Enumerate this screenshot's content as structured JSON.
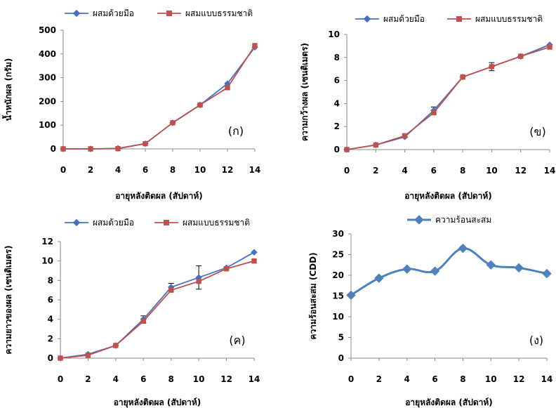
{
  "chart_data": [
    {
      "type": "line",
      "panel_label": "(ก)",
      "xlabel": "อายุหลังติดผล (สัปดาห์)",
      "ylabel": "น้ำหนักผล (กรัม)",
      "x": [
        0,
        2,
        4,
        6,
        8,
        10,
        12,
        14
      ],
      "xlim": [
        0,
        14
      ],
      "ylim": [
        0,
        500
      ],
      "yticks": [
        0,
        100,
        200,
        300,
        400,
        500
      ],
      "legend_position": "top",
      "series": [
        {
          "name": "ผสมด้วยมือ",
          "color": "#4472c4",
          "marker": "diamond",
          "values": [
            0,
            0,
            2,
            22,
            110,
            185,
            275,
            428
          ]
        },
        {
          "name": "ผสมแบบธรรมชาติ",
          "color": "#c0504d",
          "marker": "square",
          "values": [
            0,
            0,
            1,
            22,
            110,
            185,
            258,
            435
          ]
        }
      ]
    },
    {
      "type": "line",
      "panel_label": "(ข)",
      "xlabel": "อายุหลังติดผล (สัปดาห์)",
      "ylabel": "ความกว้างผล (เซนติเมตร)",
      "x": [
        0,
        2,
        4,
        6,
        8,
        10,
        12,
        14
      ],
      "xlim": [
        0,
        14
      ],
      "ylim": [
        0,
        10
      ],
      "yticks": [
        0,
        2,
        4,
        6,
        8,
        10
      ],
      "legend_position": "top",
      "series": [
        {
          "name": "ผสมด้วยมือ",
          "color": "#4472c4",
          "marker": "diamond",
          "values": [
            0,
            0.4,
            1.1,
            3.4,
            6.3,
            7.2,
            8.1,
            9.1
          ]
        },
        {
          "name": "ผสมแบบธรรมชาติ",
          "color": "#c0504d",
          "marker": "square",
          "values": [
            0,
            0.4,
            1.2,
            3.2,
            6.3,
            7.2,
            8.1,
            8.9
          ]
        }
      ]
    },
    {
      "type": "line",
      "panel_label": "(ค)",
      "xlabel": "อายุหลังติดผล (สัปดาห์)",
      "ylabel": "ความยาวของผล (เซนติเมตร)",
      "x": [
        0,
        2,
        4,
        6,
        8,
        10,
        12,
        14
      ],
      "xlim": [
        0,
        14
      ],
      "ylim": [
        0,
        12
      ],
      "yticks": [
        0,
        2,
        4,
        6,
        8,
        10,
        12
      ],
      "legend_position": "top",
      "series": [
        {
          "name": "ผสมด้วยมือ",
          "color": "#4472c4",
          "marker": "diamond",
          "values": [
            0,
            0.4,
            1.3,
            4.0,
            7.3,
            8.3,
            9.3,
            10.9
          ]
        },
        {
          "name": "ผสมแบบธรรมชาติ",
          "color": "#c0504d",
          "marker": "square",
          "values": [
            0,
            0.3,
            1.3,
            3.8,
            7.0,
            7.9,
            9.2,
            10.0
          ]
        }
      ]
    },
    {
      "type": "line",
      "panel_label": "(ง)",
      "xlabel": "อายุหลังติดผล (สัปดาห์)",
      "ylabel": "ความร้อนสะสม (CDD)",
      "x": [
        0,
        2,
        4,
        6,
        8,
        10,
        12,
        14
      ],
      "xlim": [
        0,
        14
      ],
      "ylim": [
        0,
        30
      ],
      "yticks": [
        0,
        5,
        10,
        15,
        20,
        25,
        30
      ],
      "legend_position": "top",
      "series": [
        {
          "name": "ความร้อนสะสม",
          "color": "#4f81bd",
          "marker": "diamond",
          "smooth": true,
          "values": [
            15.2,
            19.3,
            21.5,
            21.0,
            26.5,
            22.5,
            21.8,
            20.4
          ]
        }
      ]
    }
  ]
}
